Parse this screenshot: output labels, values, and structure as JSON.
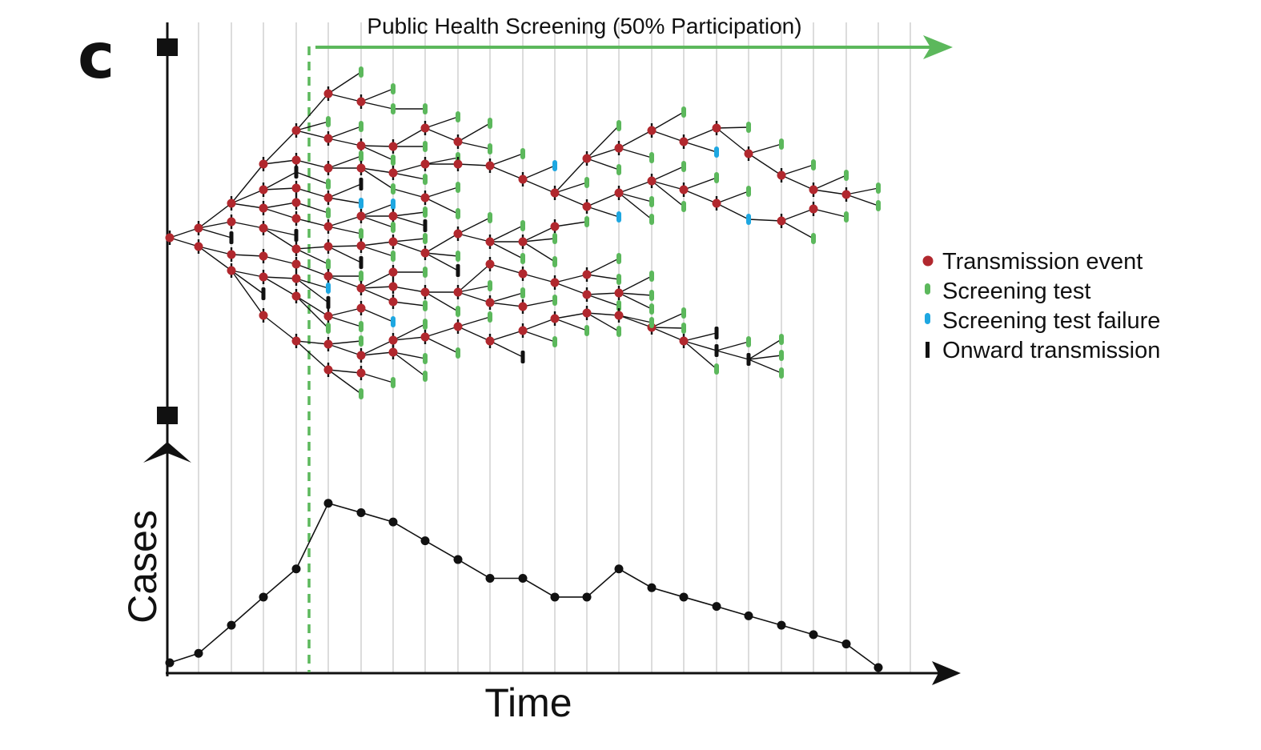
{
  "panel_letter": "c",
  "banner": {
    "text": "Public Health Screening (50% Participation)",
    "color": "#5cb85c"
  },
  "axes": {
    "x_label": "Time",
    "y_label": "Cases"
  },
  "legend": [
    {
      "marker": "dot",
      "color": "#b1282e",
      "label": "Transmission event"
    },
    {
      "marker": "pill",
      "color": "#5cb85c",
      "label": "Screening test"
    },
    {
      "marker": "pill",
      "color": "#1ea7e1",
      "label": "Screening test failure"
    },
    {
      "marker": "bar",
      "color": "#111111",
      "label": "Onward transmission"
    }
  ],
  "colors": {
    "transmission": "#b1282e",
    "screen": "#5cb85c",
    "screen_fail": "#1ea7e1",
    "onward": "#111111",
    "gridline": "#d4d4d4",
    "line": "#111111"
  },
  "chart_data": {
    "type": "line",
    "xlabel": "Time",
    "ylabel": "Cases",
    "x": [
      0,
      1,
      2,
      3,
      4,
      5,
      6,
      7,
      8,
      9,
      10,
      11,
      12,
      13,
      14,
      15,
      16,
      17,
      18,
      19,
      20,
      21,
      22
    ],
    "y": [
      1,
      2,
      5,
      8,
      11,
      18,
      17,
      16,
      14,
      12,
      10,
      10,
      8,
      8,
      11,
      9,
      8,
      7,
      6,
      5,
      4,
      3,
      1
    ],
    "intervention_start_x": 4.4
  },
  "tree": {
    "node_kinds": [
      "transmission",
      "screen",
      "screen_fail",
      "onward"
    ]
  }
}
